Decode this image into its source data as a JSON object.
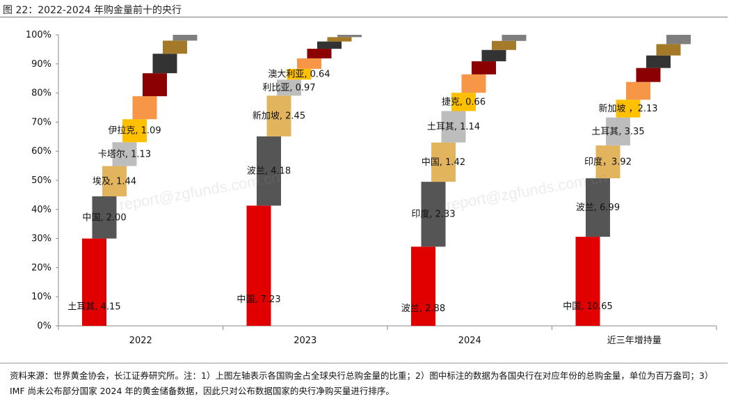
{
  "figure": {
    "title": "图 22：2022-2024 年购金量前十的央行",
    "watermark": "report@zgfunds.com.cn",
    "notes": "资料来源：世界黄金协会，长江证券研究所。注：1）上图左轴表示各国购金占全球央行总购金量的比重；2）图中标注的数据为各国央行在对应年份的总购金量，单位为百万盎司；3）IMF 尚未公布部分国家 2024 年的黄金储备数据，因此只对公布数据国家的央行净购买量进行排序。"
  },
  "chart_data": {
    "type": "bar",
    "title": "",
    "xlabel": "",
    "ylabel": "",
    "ylim": [
      0,
      100
    ],
    "yticks": [
      "0%",
      "10%",
      "20%",
      "30%",
      "40%",
      "50%",
      "60%",
      "70%",
      "80%",
      "90%",
      "100%"
    ],
    "categories": [
      "2022",
      "2023",
      "2024",
      "近三年增持量"
    ],
    "colors": [
      "#e00000",
      "#555555",
      "#e2b45e",
      "#bdbdbd",
      "#ffc000",
      "#f79646",
      "#8b0000",
      "#333333",
      "#a47a28",
      "#7f7f7f"
    ],
    "groups": [
      {
        "category": "2022",
        "segments": [
          {
            "label": "土耳其, 4.15",
            "share": 30.0
          },
          {
            "label": "中国, 2.00",
            "share": 14.5
          },
          {
            "label": "埃及, 1.44",
            "share": 10.4
          },
          {
            "label": "卡塔尔, 1.13",
            "share": 8.2
          },
          {
            "label": "伊拉克, 1.09",
            "share": 7.9
          },
          {
            "label": "",
            "share": 7.9
          },
          {
            "label": "",
            "share": 7.9
          },
          {
            "label": "",
            "share": 6.7
          },
          {
            "label": "",
            "share": 4.5
          },
          {
            "label": "",
            "share": 2.0
          }
        ]
      },
      {
        "category": "2023",
        "segments": [
          {
            "label": "中国, 7.23",
            "share": 41.3
          },
          {
            "label": "波兰, 4.18",
            "share": 23.8
          },
          {
            "label": "新加坡, 2.45",
            "share": 14.0
          },
          {
            "label": "利比亚, 0.97",
            "share": 5.5
          },
          {
            "label": "澳大利亚, 0.64",
            "share": 3.7
          },
          {
            "label": "",
            "share": 3.6
          },
          {
            "label": "",
            "share": 3.3
          },
          {
            "label": "",
            "share": 2.5
          },
          {
            "label": "",
            "share": 1.5
          },
          {
            "label": "",
            "share": 0.8
          }
        ]
      },
      {
        "category": "2024",
        "segments": [
          {
            "label": "波兰, 2.88",
            "share": 27.2
          },
          {
            "label": "印度, 2.33",
            "share": 22.3
          },
          {
            "label": "中国, 1.42",
            "share": 13.5
          },
          {
            "label": "土耳其, 1.14",
            "share": 10.8
          },
          {
            "label": "捷克, 0.66",
            "share": 6.3
          },
          {
            "label": "",
            "share": 6.3
          },
          {
            "label": "",
            "share": 4.5
          },
          {
            "label": "",
            "share": 3.9
          },
          {
            "label": "",
            "share": 3.1
          },
          {
            "label": "",
            "share": 2.1
          }
        ]
      },
      {
        "category": "近三年增持量",
        "segments": [
          {
            "label": "中国, 10.65",
            "share": 30.6
          },
          {
            "label": "波兰, 6.99",
            "share": 20.1
          },
          {
            "label": "印度，3.92",
            "share": 11.3
          },
          {
            "label": "土耳其, 3.35",
            "share": 9.6
          },
          {
            "label": "新加坡 ，2.13",
            "share": 6.1
          },
          {
            "label": "",
            "share": 6.1
          },
          {
            "label": "",
            "share": 4.8
          },
          {
            "label": "",
            "share": 4.3
          },
          {
            "label": "",
            "share": 3.9
          },
          {
            "label": "",
            "share": 3.2
          }
        ]
      }
    ]
  }
}
